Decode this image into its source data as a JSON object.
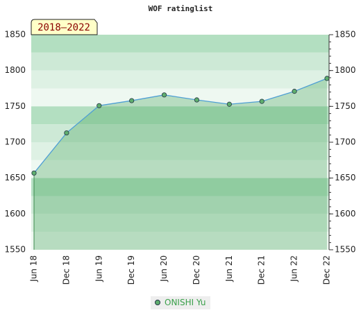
{
  "chart_data": {
    "type": "line",
    "title": "WOF ratinglist",
    "annotation": "2018–2022",
    "categories": [
      "Jun 18",
      "Dec 18",
      "Jun 19",
      "Dec 19",
      "Jun 20",
      "Dec 20",
      "Jun 21",
      "Dec 21",
      "Jun 22",
      "Dec 22"
    ],
    "series": [
      {
        "name": "ONISHI Yu",
        "color": "#4f9fd4",
        "marker_color": "#5fae6e",
        "values": [
          1657,
          1713,
          1751,
          1758,
          1766,
          1759,
          1753,
          1757,
          1771,
          1789
        ]
      }
    ],
    "ylim": [
      1550,
      1850
    ],
    "yticks": [
      1550,
      1600,
      1650,
      1700,
      1750,
      1800,
      1850
    ],
    "grid": true
  }
}
